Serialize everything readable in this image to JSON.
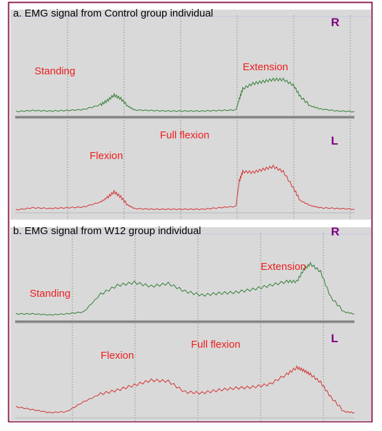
{
  "colors": {
    "frame": "#8b2252",
    "background": "#d9d9d9",
    "label": "#ee1c1c",
    "side_label": "#800080",
    "right_trace": "#2e7d32",
    "left_trace": "#d32f2f",
    "grid": "#a0a0a0"
  },
  "panels": [
    {
      "title": "a. EMG signal from Control group individual",
      "phase_labels": {
        "standing": "Standing",
        "extension": "Extension",
        "full_flexion": "Full flexion",
        "flexion": "Flexion"
      },
      "right_label": "R",
      "left_label": "L"
    },
    {
      "title": "b. EMG signal from W12 group individual",
      "phase_labels": {
        "standing": "Standing",
        "extension": "Extension",
        "full_flexion": "Full flexion",
        "flexion": "Flexion"
      },
      "right_label": "R",
      "left_label": "L"
    }
  ],
  "chart_data": [
    {
      "type": "line",
      "title": "a. EMG signal from Control group individual",
      "x": [
        0,
        0.05,
        0.1,
        0.15,
        0.2,
        0.25,
        0.27,
        0.29,
        0.31,
        0.33,
        0.35,
        0.4,
        0.45,
        0.5,
        0.55,
        0.6,
        0.65,
        0.66,
        0.67,
        0.7,
        0.73,
        0.76,
        0.79,
        0.82,
        0.84,
        0.87,
        0.9,
        0.95,
        1.0
      ],
      "series": [
        {
          "name": "R",
          "values": [
            0.04,
            0.06,
            0.05,
            0.06,
            0.08,
            0.17,
            0.25,
            0.36,
            0.29,
            0.15,
            0.07,
            0.06,
            0.05,
            0.05,
            0.05,
            0.06,
            0.07,
            0.28,
            0.48,
            0.58,
            0.62,
            0.66,
            0.66,
            0.55,
            0.33,
            0.15,
            0.09,
            0.05,
            0.04
          ]
        },
        {
          "name": "L",
          "values": [
            0.02,
            0.05,
            0.04,
            0.05,
            0.06,
            0.13,
            0.19,
            0.27,
            0.2,
            0.09,
            0.04,
            0.03,
            0.03,
            0.03,
            0.03,
            0.05,
            0.07,
            0.42,
            0.55,
            0.54,
            0.58,
            0.62,
            0.55,
            0.32,
            0.15,
            0.08,
            0.05,
            0.04,
            0.03
          ]
        }
      ]
    },
    {
      "type": "line",
      "title": "b. EMG signal from W12 group individual",
      "x": [
        0,
        0.05,
        0.1,
        0.15,
        0.2,
        0.25,
        0.3,
        0.35,
        0.4,
        0.45,
        0.5,
        0.55,
        0.6,
        0.65,
        0.7,
        0.75,
        0.8,
        0.83,
        0.85,
        0.87,
        0.9,
        0.93,
        0.97,
        1.0
      ],
      "series": [
        {
          "name": "R",
          "values": [
            0.05,
            0.05,
            0.04,
            0.05,
            0.07,
            0.25,
            0.34,
            0.37,
            0.33,
            0.36,
            0.28,
            0.24,
            0.26,
            0.27,
            0.3,
            0.34,
            0.38,
            0.38,
            0.5,
            0.56,
            0.48,
            0.22,
            0.07,
            0.05
          ]
        },
        {
          "name": "L",
          "values": [
            0.1,
            0.07,
            0.04,
            0.05,
            0.15,
            0.23,
            0.27,
            0.32,
            0.37,
            0.36,
            0.25,
            0.24,
            0.27,
            0.29,
            0.3,
            0.33,
            0.43,
            0.5,
            0.47,
            0.43,
            0.35,
            0.2,
            0.05,
            0.04
          ]
        }
      ]
    }
  ]
}
